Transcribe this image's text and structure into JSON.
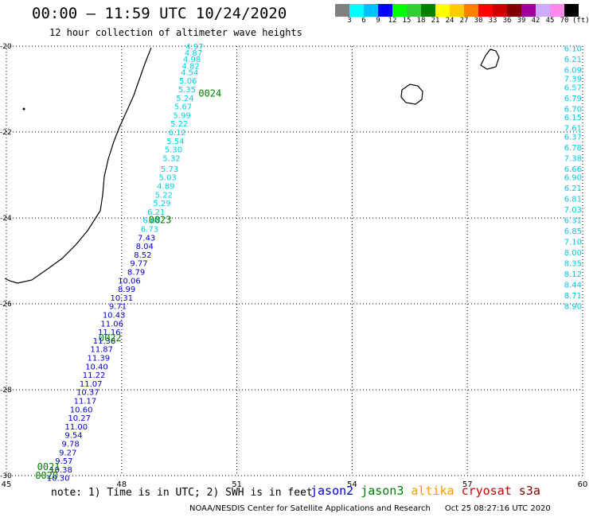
{
  "header": {
    "title": "00:00 – 11:59 UTC 10/24/2020",
    "subtitle": "12 hour collection of altimeter wave heights"
  },
  "legend": {
    "colors": [
      "#808080",
      "#00ffff",
      "#00bfff",
      "#0000ff",
      "#00ff00",
      "#33cc33",
      "#008000",
      "#ffff00",
      "#ffcc00",
      "#ff8000",
      "#ff0000",
      "#cc0000",
      "#800000",
      "#a000a0",
      "#ccaaff",
      "#ff88ee",
      "#000000"
    ],
    "labels": [
      "3",
      "6",
      "9",
      "12",
      "15",
      "18",
      "21",
      "24",
      "27",
      "30",
      "33",
      "36",
      "39",
      "42",
      "45",
      "70"
    ],
    "unit": "(ft)"
  },
  "note": "note: 1) Time is in UTC; 2) SWH is in feet",
  "satellites": [
    {
      "name": "jason2",
      "color": "#0000cc"
    },
    {
      "name": "jason3",
      "color": "#008000"
    },
    {
      "name": "altika",
      "color": "#ff9900"
    },
    {
      "name": "cryosat",
      "color": "#cc0000"
    },
    {
      "name": "s3a",
      "color": "#800000"
    }
  ],
  "footer": {
    "credit": "NOAA/NESDIS Center for Satellite Applications and Research",
    "timestamp": "Oct 25 08:27:16 UTC 2020"
  },
  "chart_data": {
    "type": "scatter",
    "xlim": [
      45,
      60
    ],
    "ylim": [
      -30,
      -20
    ],
    "x_ticks": [
      "45",
      "48",
      "51",
      "54",
      "57",
      "60"
    ],
    "y_ticks": [
      "-20",
      "-22",
      "-24",
      "-26",
      "-28",
      "-30"
    ],
    "grid": true,
    "track_labels": [
      {
        "text": "0024",
        "lon": 50.3,
        "lat": -21.1
      },
      {
        "text": "0023",
        "lon": 49.0,
        "lat": -24.05
      },
      {
        "text": "0022",
        "lon": 47.7,
        "lat": -26.8
      },
      {
        "text": "0021",
        "lon": 46.1,
        "lat": -29.8
      },
      {
        "text": "0020",
        "lon": 46.05,
        "lat": -30.0
      }
    ],
    "series": [
      {
        "color": "#00d0e8",
        "points": [
          [
            49.9,
            -20.0,
            "4.97"
          ],
          [
            49.87,
            -20.15,
            "4.87"
          ],
          [
            49.83,
            -20.3,
            "4.98"
          ],
          [
            49.8,
            -20.45,
            "4.82"
          ],
          [
            49.77,
            -20.6,
            "4.54"
          ],
          [
            49.73,
            -20.8,
            "5.06"
          ],
          [
            49.7,
            -21.0,
            "5.35"
          ],
          [
            49.65,
            -21.2,
            "5.24"
          ],
          [
            49.6,
            -21.4,
            "5.67"
          ],
          [
            49.57,
            -21.6,
            "5.99"
          ],
          [
            49.5,
            -21.8,
            "5.22"
          ],
          [
            49.45,
            -22.0,
            "6.12"
          ],
          [
            49.4,
            -22.2,
            "5.54"
          ],
          [
            49.35,
            -22.4,
            "5.30"
          ],
          [
            49.3,
            -22.6,
            "5.32"
          ],
          [
            49.25,
            -22.85,
            "5.73"
          ],
          [
            49.2,
            -23.05,
            "5.03"
          ],
          [
            49.15,
            -23.25,
            "4.89"
          ],
          [
            49.1,
            -23.45,
            "5.22"
          ],
          [
            49.05,
            -23.65,
            "5.29"
          ],
          [
            48.9,
            -23.85,
            "6.21"
          ],
          [
            48.78,
            -24.05,
            "6.68"
          ],
          [
            48.73,
            -24.25,
            "6.73"
          ]
        ]
      },
      {
        "color": "#00c8e8",
        "points": [
          [
            60.0,
            -20.05,
            "6.10"
          ],
          [
            60.0,
            -20.3,
            "6.21"
          ],
          [
            60.0,
            -20.55,
            "6.09"
          ],
          [
            60.0,
            -20.75,
            "7.39"
          ],
          [
            60.0,
            -20.95,
            "6.57"
          ],
          [
            60.0,
            -21.2,
            "6.79"
          ],
          [
            60.0,
            -21.45,
            "6.70"
          ],
          [
            60.0,
            -21.65,
            "6.15"
          ],
          [
            60.0,
            -21.9,
            "7.61"
          ],
          [
            60.0,
            -22.1,
            "6.37"
          ],
          [
            60.0,
            -22.35,
            "6.78"
          ],
          [
            60.0,
            -22.6,
            "7.38"
          ],
          [
            60.0,
            -22.85,
            "6.66"
          ],
          [
            60.0,
            -23.05,
            "6.90"
          ],
          [
            60.0,
            -23.3,
            "6.21"
          ],
          [
            60.0,
            -23.55,
            "6.81"
          ],
          [
            60.0,
            -23.8,
            "7.03"
          ],
          [
            60.0,
            -24.05,
            "6.31"
          ],
          [
            60.0,
            -24.3,
            "6.85"
          ],
          [
            60.0,
            -24.55,
            "7.10"
          ],
          [
            60.0,
            -24.8,
            "8.00"
          ],
          [
            60.0,
            -25.05,
            "8.35"
          ],
          [
            60.0,
            -25.3,
            "8.12"
          ],
          [
            60.0,
            -25.55,
            "8.44"
          ],
          [
            60.0,
            -25.8,
            "8.71"
          ],
          [
            60.0,
            -26.05,
            "8.90"
          ]
        ]
      },
      {
        "color": "#0000cc",
        "points": [
          [
            48.65,
            -24.45,
            "7.43"
          ],
          [
            48.6,
            -24.65,
            "8.04"
          ],
          [
            48.55,
            -24.85,
            "8.52"
          ],
          [
            48.45,
            -25.05,
            "9.77"
          ],
          [
            48.38,
            -25.25,
            "8.79"
          ],
          [
            48.2,
            -25.45,
            "10.06"
          ],
          [
            48.13,
            -25.65,
            "8.99"
          ],
          [
            48.0,
            -25.85,
            "10.31"
          ],
          [
            47.9,
            -26.05,
            "9.71"
          ],
          [
            47.8,
            -26.25,
            "10.43"
          ],
          [
            47.75,
            -26.45,
            "11.06"
          ],
          [
            47.68,
            -26.65,
            "11.16"
          ],
          [
            47.55,
            -26.85,
            "11.38"
          ],
          [
            47.48,
            -27.05,
            "11.87"
          ],
          [
            47.4,
            -27.25,
            "11.39"
          ],
          [
            47.35,
            -27.45,
            "10.40"
          ],
          [
            47.28,
            -27.65,
            "11.22"
          ],
          [
            47.2,
            -27.85,
            "11.07"
          ],
          [
            47.12,
            -28.05,
            "10.37"
          ],
          [
            47.05,
            -28.25,
            "11.17"
          ],
          [
            46.95,
            -28.45,
            "10.60"
          ],
          [
            46.9,
            -28.65,
            "10.27"
          ],
          [
            46.82,
            -28.85,
            "11.00"
          ],
          [
            46.75,
            -29.05,
            "9.54"
          ],
          [
            46.67,
            -29.25,
            "9.78"
          ],
          [
            46.6,
            -29.45,
            "9.27"
          ],
          [
            46.5,
            -29.65,
            "9.57"
          ],
          [
            46.42,
            -29.85,
            "10.38"
          ],
          [
            46.35,
            -30.05,
            "10.30"
          ]
        ]
      }
    ]
  }
}
